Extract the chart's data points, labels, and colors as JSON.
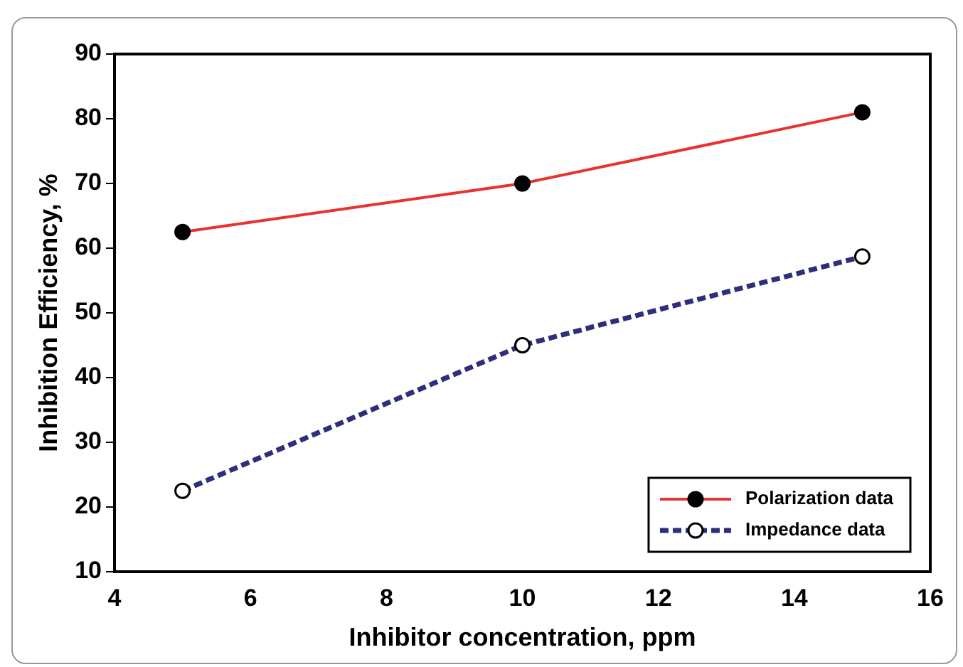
{
  "chart_data": {
    "type": "line",
    "xlabel": "Inhibitor concentration, ppm",
    "ylabel": "Inhibition Efficiency, %",
    "x": [
      5,
      10,
      15
    ],
    "series": [
      {
        "name": "Polarization data",
        "color": "#e8322e",
        "values": [
          62.5,
          70,
          81
        ],
        "line_style": "solid"
      },
      {
        "name": "Impedance data",
        "color": "#2e2e7a",
        "values": [
          22.5,
          45,
          58.7
        ],
        "line_style": "dashed"
      }
    ],
    "xlim": [
      4,
      16
    ],
    "xticks": [
      4,
      6,
      8,
      10,
      12,
      14,
      16
    ],
    "ylim": [
      10,
      90
    ],
    "yticks": [
      10,
      20,
      30,
      40,
      50,
      60,
      70,
      80,
      90
    ],
    "grid": false,
    "legend": "bottom right",
    "marker": "circle"
  }
}
